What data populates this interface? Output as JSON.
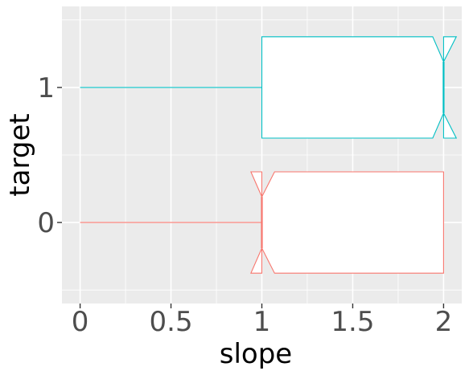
{
  "chart_data": {
    "type": "boxplot",
    "orientation": "horizontal",
    "notched": true,
    "title": "",
    "xlabel": "slope",
    "ylabel": "target",
    "xlim": [
      -0.1,
      2.1
    ],
    "ylim": [
      -0.6,
      1.6
    ],
    "x_ticks": [
      0,
      0.5,
      1,
      1.5,
      2
    ],
    "x_tick_labels": [
      "0",
      "0.5",
      "1",
      "1.5",
      "2"
    ],
    "y_ticks": [
      0,
      1
    ],
    "y_tick_labels": [
      "0",
      "1"
    ],
    "grid": true,
    "legend": "none",
    "panel_background": "#EBEBEB",
    "grid_color": "#FFFFFF",
    "series": [
      {
        "category": "0",
        "color": "#F8766D",
        "whisker_low": 0,
        "q1": 1,
        "median": 1,
        "q3": 2,
        "whisker_high": 2,
        "notch_low": 0.94,
        "notch_high": 1.07
      },
      {
        "category": "1",
        "color": "#00BFC4",
        "whisker_low": 0,
        "q1": 1,
        "median": 2,
        "q3": 2,
        "whisker_high": 2,
        "notch_low": 1.94,
        "notch_high": 2.07
      }
    ]
  }
}
